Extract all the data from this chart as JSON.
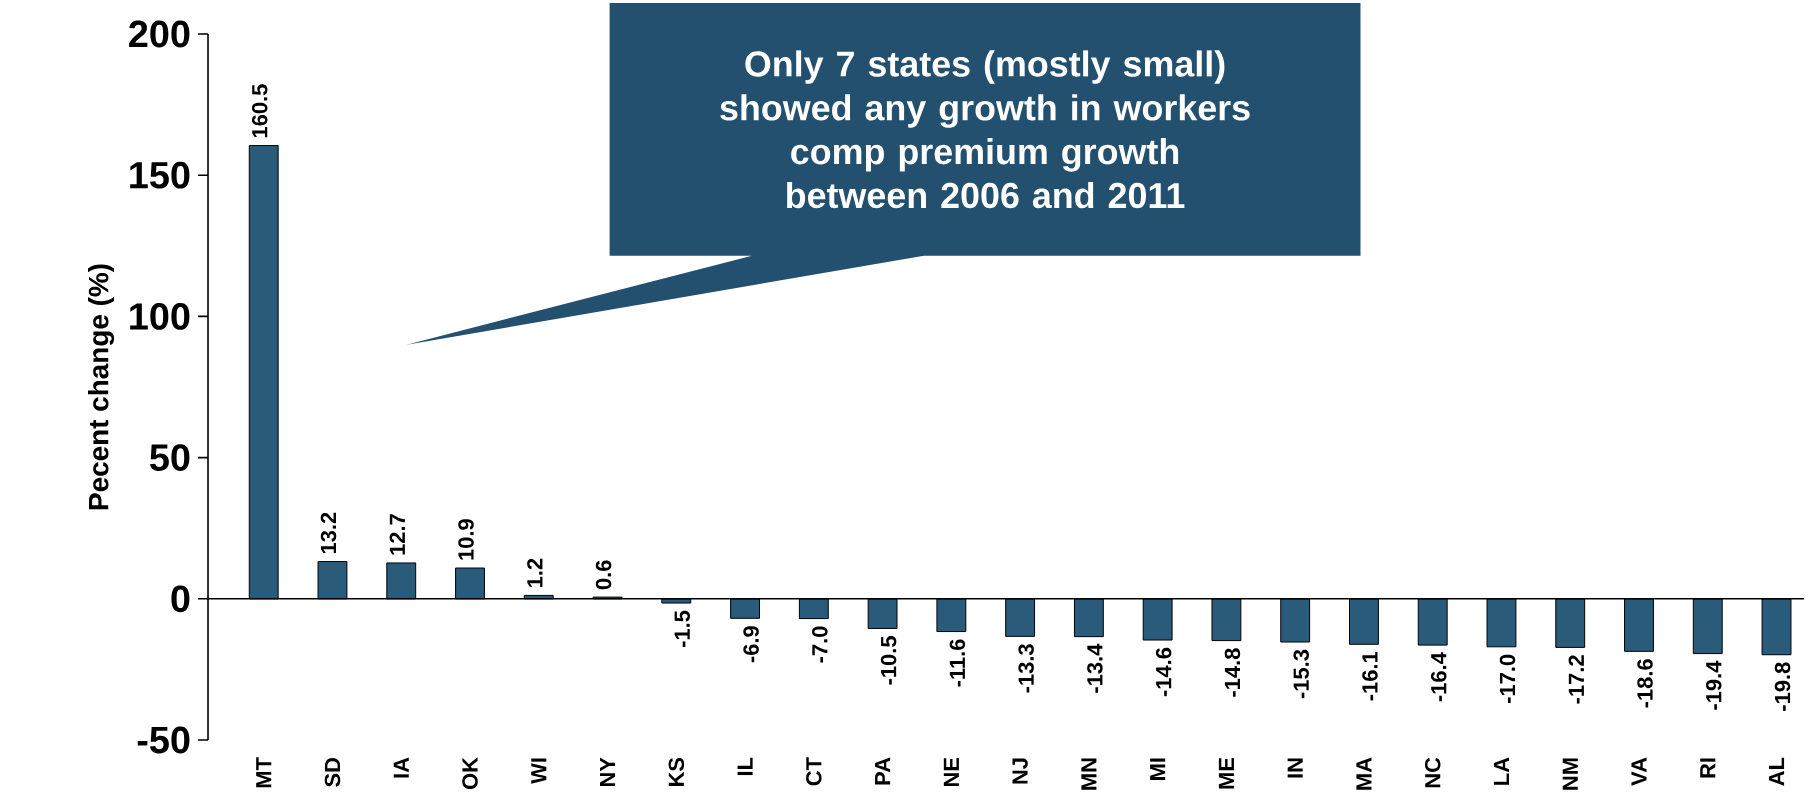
{
  "chart_data": {
    "type": "bar",
    "ylabel": "Pecent change (%)",
    "categories": [
      "MT",
      "SD",
      "IA",
      "OK",
      "WI",
      "NY",
      "KS",
      "IL",
      "CT",
      "PA",
      "NE",
      "NJ",
      "MN",
      "MI",
      "ME",
      "IN",
      "MA",
      "NC",
      "LA",
      "NM",
      "VA",
      "RI",
      "AL"
    ],
    "values": [
      160.5,
      13.2,
      12.7,
      10.9,
      1.2,
      0.6,
      -1.5,
      -6.9,
      -7.0,
      -10.5,
      -11.6,
      -13.3,
      -13.4,
      -14.6,
      -14.8,
      -15.3,
      -16.1,
      -16.4,
      -17.0,
      -17.2,
      -18.6,
      -19.4,
      -19.8
    ],
    "value_labels": [
      "160.5",
      "13.2",
      "12.7",
      "10.9",
      "1.2",
      "0.6",
      "-1.5",
      "-6.9",
      "-7.0",
      "-10.5",
      "-11.6",
      "-13.3",
      "-13.4",
      "-14.6",
      "-14.8",
      "-15.3",
      "-16.1",
      "-16.4",
      "-17.0",
      "-17.2",
      "-18.6",
      "-19.4",
      "-19.8"
    ],
    "color": "#2b5b7b",
    "ylim": [
      -50,
      200
    ],
    "yticks": [
      -50,
      0,
      50,
      100,
      150,
      200
    ],
    "annotations": [
      "Only 7 states (mostly small) showed any growth in workers comp premium growth between 2006 and 2011"
    ]
  }
}
